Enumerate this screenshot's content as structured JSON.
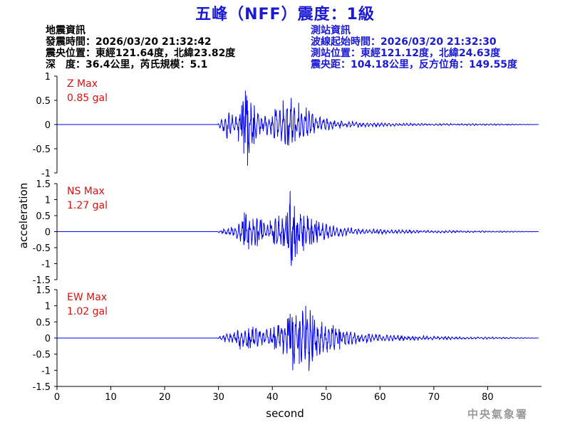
{
  "title": "五峰（NFF）震度：1級",
  "quake_info": {
    "header": "地震資訊",
    "lines": [
      "發震時間：2026/03/20 21:32:42",
      "震央位置：東經121.64度，北緯23.82度",
      "深　度：36.4公里，芮氏規模：5.1"
    ]
  },
  "station_info": {
    "header": "測站資訊",
    "lines": [
      "波線起始時間：2026/03/20 21:32:30",
      "測站位置：東經121.12度，北緯24.63度",
      "震央距：104.18公里，反方位角：149.55度"
    ]
  },
  "footer": "中央氣象署",
  "colors": {
    "trace": "#0000ff",
    "max_label": "#e01010",
    "title": "#1a1ad6",
    "axis": "#000000",
    "footer": "#9a9a9a"
  },
  "chart_data": {
    "type": "line",
    "xlabel": "second",
    "ylabel": "acceleration",
    "xlim": [
      0,
      90
    ],
    "x_ticks": [
      0,
      10,
      20,
      30,
      40,
      50,
      60,
      70,
      80
    ],
    "x_tick_labels": [
      "0",
      "10",
      "20",
      "30",
      "40",
      "50",
      "60",
      "70",
      "80"
    ],
    "series": [
      {
        "name": "Z",
        "max_label": "Z Max",
        "max_value_label": "0.85 gal",
        "ylim": [
          -1,
          1
        ],
        "y_ticks": [
          -1,
          -0.5,
          0,
          0.5,
          1
        ],
        "y_tick_labels": [
          "-1",
          "-0.5",
          "0",
          "0.5",
          "1"
        ],
        "x": [
          0,
          29.8,
          30.0,
          30.8,
          31.5,
          32.2,
          33.0,
          33.7,
          34.3,
          34.7,
          35.0,
          35.4,
          36.0,
          36.6,
          37.2,
          38.0,
          38.8,
          39.6,
          40.5,
          41.3,
          42.0,
          42.8,
          43.5,
          44.2,
          44.9,
          45.6,
          46.3,
          47.0,
          47.8,
          48.6,
          49.5,
          50.5,
          51.5,
          52.5,
          53.5,
          55.0,
          56.5,
          58.0,
          60.0,
          63.0,
          66.0,
          70.0,
          75.0,
          80.0,
          85.0,
          89.5
        ],
        "y": [
          0,
          0,
          0.03,
          -0.15,
          0.3,
          -0.22,
          0.2,
          -0.35,
          0.4,
          -0.6,
          0.7,
          -0.85,
          0.45,
          -0.4,
          0.3,
          -0.25,
          0.22,
          -0.2,
          0.32,
          -0.3,
          0.5,
          -0.42,
          0.55,
          -0.35,
          0.45,
          -0.3,
          0.35,
          -0.25,
          0.2,
          -0.18,
          0.15,
          -0.12,
          0.1,
          -0.09,
          0.08,
          -0.06,
          0.05,
          -0.05,
          0.04,
          -0.03,
          0.03,
          -0.02,
          0.02,
          -0.02,
          0.01,
          0
        ]
      },
      {
        "name": "NS",
        "max_label": "NS Max",
        "max_value_label": "1.27 gal",
        "ylim": [
          -1.5,
          1.5
        ],
        "y_ticks": [
          -1.5,
          -1,
          -0.5,
          0,
          0.5,
          1,
          1.5
        ],
        "y_tick_labels": [
          "-1.5",
          "-1",
          "-0.5",
          "0",
          "0.5",
          "1",
          "1.5"
        ],
        "x": [
          0,
          29.8,
          30.0,
          30.8,
          31.6,
          32.4,
          33.2,
          34.0,
          34.8,
          35.6,
          36.4,
          37.2,
          38.0,
          38.8,
          39.6,
          40.4,
          41.2,
          42.0,
          42.8,
          43.3,
          43.7,
          44.1,
          44.6,
          45.2,
          45.8,
          46.5,
          47.3,
          48.2,
          49.2,
          50.2,
          51.5,
          53.0,
          55.0,
          57.0,
          60.0,
          63.0,
          67.0,
          72.0,
          78.0,
          84.0,
          89.5
        ],
        "y": [
          0,
          0,
          0.03,
          -0.1,
          0.12,
          -0.15,
          0.2,
          -0.3,
          0.6,
          -0.55,
          0.4,
          -0.45,
          0.38,
          -0.3,
          0.35,
          -0.4,
          0.5,
          -0.45,
          0.6,
          1.27,
          -0.9,
          0.8,
          -0.7,
          0.55,
          -0.6,
          0.5,
          -0.4,
          0.35,
          -0.3,
          0.25,
          -0.2,
          0.15,
          -0.12,
          0.1,
          -0.08,
          0.06,
          -0.05,
          0.04,
          -0.03,
          0.02,
          0
        ]
      },
      {
        "name": "EW",
        "max_label": "EW Max",
        "max_value_label": "1.02 gal",
        "ylim": [
          -1.5,
          1.5
        ],
        "y_ticks": [
          -1.5,
          -1,
          -0.5,
          0,
          0.5,
          1,
          1.5
        ],
        "y_tick_labels": [
          "-1.5",
          "-1",
          "-0.5",
          "0",
          "0.5",
          "1",
          "1.5"
        ],
        "x": [
          0,
          29.8,
          30.0,
          30.8,
          31.6,
          32.4,
          33.2,
          34.0,
          34.8,
          35.6,
          36.4,
          37.2,
          38.0,
          38.8,
          39.6,
          40.4,
          41.2,
          42.0,
          42.8,
          43.3,
          43.8,
          44.4,
          45.0,
          45.6,
          46.2,
          46.8,
          47.5,
          48.3,
          49.2,
          50.2,
          51.3,
          52.5,
          54.0,
          56.0,
          58.0,
          61.0,
          65.0,
          70.0,
          76.0,
          82.0,
          89.5
        ],
        "y": [
          0,
          0,
          0.03,
          -0.1,
          0.15,
          -0.18,
          0.2,
          -0.35,
          0.3,
          -0.32,
          0.35,
          -0.3,
          0.3,
          -0.28,
          0.3,
          -0.35,
          0.4,
          -0.5,
          0.6,
          0.75,
          -1.0,
          0.7,
          -0.8,
          0.85,
          1.0,
          -1.02,
          0.7,
          -0.55,
          0.5,
          -0.45,
          0.4,
          -0.35,
          0.25,
          -0.2,
          0.15,
          -0.1,
          0.08,
          -0.06,
          0.04,
          -0.03,
          0
        ]
      }
    ]
  }
}
